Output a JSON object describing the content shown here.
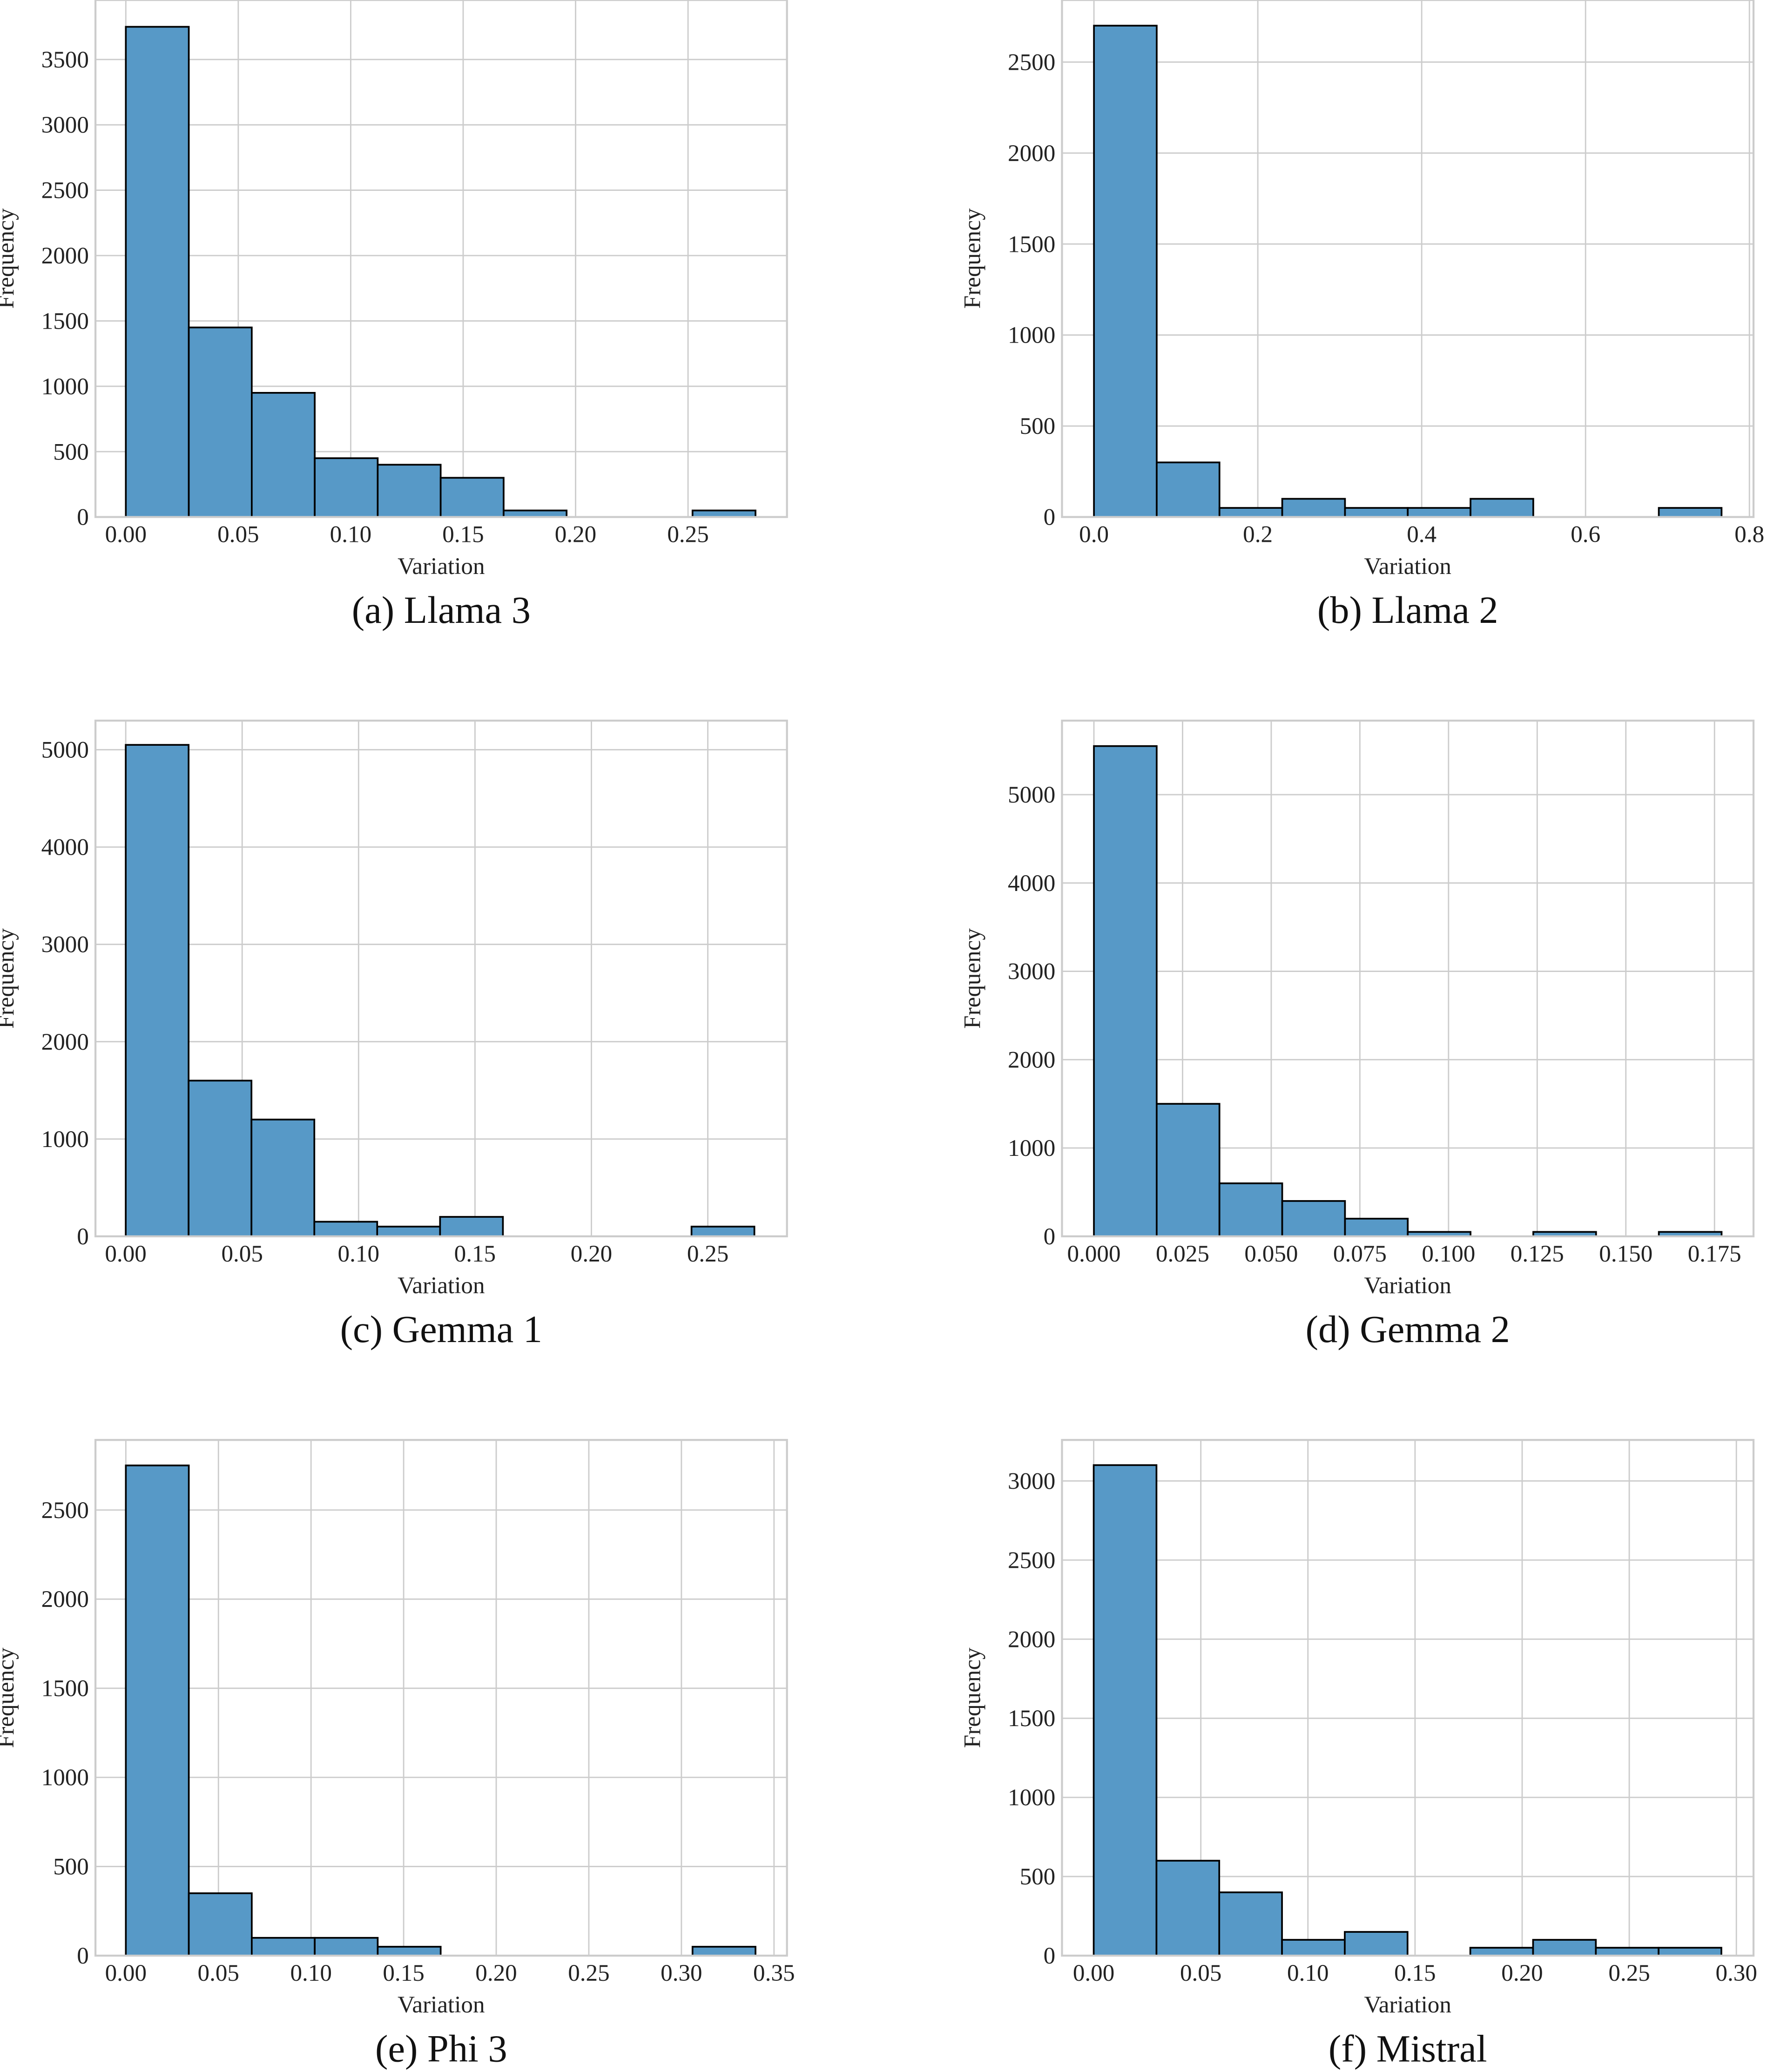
{
  "chart_data": [
    {
      "type": "bar",
      "caption": "(a) Llama 3",
      "xlabel": "Variation",
      "ylabel": "Frequency",
      "bin_start": 0.0,
      "bin_width": 0.028,
      "values": [
        3750,
        1450,
        950,
        450,
        400,
        300,
        50,
        0,
        0,
        50
      ],
      "xlim": [
        -0.0135,
        0.294
      ],
      "ylim": [
        0,
        3955
      ],
      "xticks": [
        0,
        0.05,
        0.1,
        0.15,
        0.2,
        0.25
      ],
      "xtick_labels": [
        "0.00",
        "0.05",
        "0.10",
        "0.15",
        "0.20",
        "0.25"
      ],
      "yticks": [
        0,
        500,
        1000,
        1500,
        2000,
        2500,
        3000,
        3500
      ],
      "ytick_labels": [
        "0",
        "500",
        "1000",
        "1500",
        "2000",
        "2500",
        "3000",
        "3500"
      ],
      "grid": true,
      "bar_color": "#5799c7"
    },
    {
      "type": "bar",
      "caption": "(b) Llama 2",
      "xlabel": "Variation",
      "ylabel": "Frequency",
      "bin_start": 0.0,
      "bin_width": 0.0766,
      "values": [
        2700,
        300,
        50,
        100,
        50,
        50,
        100,
        0,
        0,
        50
      ],
      "xlim": [
        -0.039,
        0.805
      ],
      "ylim": [
        0,
        2841
      ],
      "xticks": [
        0,
        0.2,
        0.4,
        0.6,
        0.8
      ],
      "xtick_labels": [
        "0.0",
        "0.2",
        "0.4",
        "0.6",
        "0.8"
      ],
      "yticks": [
        0,
        500,
        1000,
        1500,
        2000,
        2500
      ],
      "ytick_labels": [
        "0",
        "500",
        "1000",
        "1500",
        "2000",
        "2500"
      ],
      "grid": true,
      "bar_color": "#5799c7"
    },
    {
      "type": "bar",
      "caption": "(c) Gemma 1",
      "xlabel": "Variation",
      "ylabel": "Frequency",
      "bin_start": 0.0,
      "bin_width": 0.027,
      "values": [
        5050,
        1600,
        1200,
        150,
        100,
        200,
        0,
        0,
        0,
        100
      ],
      "xlim": [
        -0.013,
        0.284
      ],
      "ylim": [
        0,
        5299
      ],
      "xticks": [
        0,
        0.05,
        0.1,
        0.15,
        0.2,
        0.25
      ],
      "xtick_labels": [
        "0.00",
        "0.05",
        "0.10",
        "0.15",
        "0.20",
        "0.25"
      ],
      "yticks": [
        0,
        1000,
        2000,
        3000,
        4000,
        5000
      ],
      "ytick_labels": [
        "0",
        "1000",
        "2000",
        "3000",
        "4000",
        "5000"
      ],
      "grid": true,
      "bar_color": "#5799c7"
    },
    {
      "type": "bar",
      "caption": "(d) Gemma 2",
      "xlabel": "Variation",
      "ylabel": "Frequency",
      "bin_start": 0.0,
      "bin_width": 0.0177,
      "values": [
        5550,
        1500,
        600,
        400,
        200,
        50,
        0,
        50,
        0,
        50
      ],
      "xlim": [
        -0.009,
        0.186
      ],
      "ylim": [
        0,
        5838
      ],
      "xticks": [
        0,
        0.025,
        0.05,
        0.075,
        0.1,
        0.125,
        0.15,
        0.175
      ],
      "xtick_labels": [
        "0.000",
        "0.025",
        "0.050",
        "0.075",
        "0.100",
        "0.125",
        "0.150",
        "0.175"
      ],
      "yticks": [
        0,
        1000,
        2000,
        3000,
        4000,
        5000
      ],
      "ytick_labels": [
        "0",
        "1000",
        "2000",
        "3000",
        "4000",
        "5000"
      ],
      "grid": true,
      "bar_color": "#5799c7"
    },
    {
      "type": "bar",
      "caption": "(e) Phi 3",
      "xlabel": "Variation",
      "ylabel": "Frequency",
      "bin_start": 0.0,
      "bin_width": 0.034,
      "values": [
        2750,
        350,
        100,
        100,
        50,
        0,
        0,
        0,
        0,
        50
      ],
      "xlim": [
        -0.0164,
        0.357
      ],
      "ylim": [
        0,
        2893
      ],
      "xticks": [
        0,
        0.05,
        0.1,
        0.15,
        0.2,
        0.25,
        0.3,
        0.35
      ],
      "xtick_labels": [
        "0.00",
        "0.05",
        "0.10",
        "0.15",
        "0.20",
        "0.25",
        "0.30",
        "0.35"
      ],
      "yticks": [
        0,
        500,
        1000,
        1500,
        2000,
        2500
      ],
      "ytick_labels": [
        "0",
        "500",
        "1000",
        "1500",
        "2000",
        "2500"
      ],
      "grid": true,
      "bar_color": "#5799c7"
    },
    {
      "type": "bar",
      "caption": "(f) Mistral",
      "xlabel": "Variation",
      "ylabel": "Frequency",
      "bin_start": 0.0,
      "bin_width": 0.0293,
      "values": [
        3100,
        600,
        400,
        100,
        150,
        0,
        50,
        100,
        50,
        50
      ],
      "xlim": [
        -0.0148,
        0.308
      ],
      "ylim": [
        0,
        3259
      ],
      "xticks": [
        0,
        0.05,
        0.1,
        0.15,
        0.2,
        0.25,
        0.3
      ],
      "xtick_labels": [
        "0.00",
        "0.05",
        "0.10",
        "0.15",
        "0.20",
        "0.25",
        "0.30"
      ],
      "yticks": [
        0,
        500,
        1000,
        1500,
        2000,
        2500,
        3000
      ],
      "ytick_labels": [
        "0",
        "500",
        "1000",
        "1500",
        "2000",
        "2500",
        "3000"
      ],
      "grid": true,
      "bar_color": "#5799c7"
    }
  ]
}
